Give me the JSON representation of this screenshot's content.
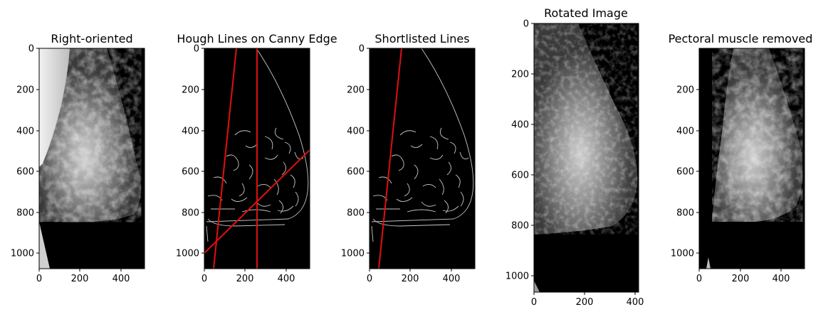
{
  "panels": [
    {
      "id": "right-oriented",
      "title": "Right-oriented",
      "image_type": "mammogram-right-oriented",
      "xticks": [
        "0",
        "200",
        "400"
      ],
      "yticks": [
        "0",
        "200",
        "400",
        "600",
        "800",
        "1000"
      ]
    },
    {
      "id": "hough-lines",
      "title": "Hough Lines on Canny Edge",
      "image_type": "canny-edge-with-hough-lines",
      "line_color": "#e01010",
      "xticks": [
        "0",
        "200",
        "400"
      ],
      "yticks": [
        "0",
        "200",
        "400",
        "600",
        "800",
        "1000"
      ]
    },
    {
      "id": "shortlisted-lines",
      "title": "Shortlisted Lines",
      "image_type": "canny-edge-with-shortlisted-line",
      "line_color": "#e01010",
      "xticks": [
        "0",
        "200",
        "400"
      ],
      "yticks": [
        "0",
        "200",
        "400",
        "600",
        "800",
        "1000"
      ]
    },
    {
      "id": "rotated-image",
      "title": "Rotated Image",
      "image_type": "mammogram-rotated",
      "xticks": [
        "0",
        "200",
        "400"
      ],
      "yticks": [
        "0",
        "200",
        "400",
        "600",
        "800",
        "1000"
      ]
    },
    {
      "id": "pectoral-removed",
      "title": "Pectoral muscle removed",
      "image_type": "mammogram-pectoral-removed",
      "xticks": [
        "0",
        "200",
        "400"
      ],
      "yticks": [
        "200",
        "400",
        "600",
        "800",
        "1000"
      ]
    }
  ]
}
